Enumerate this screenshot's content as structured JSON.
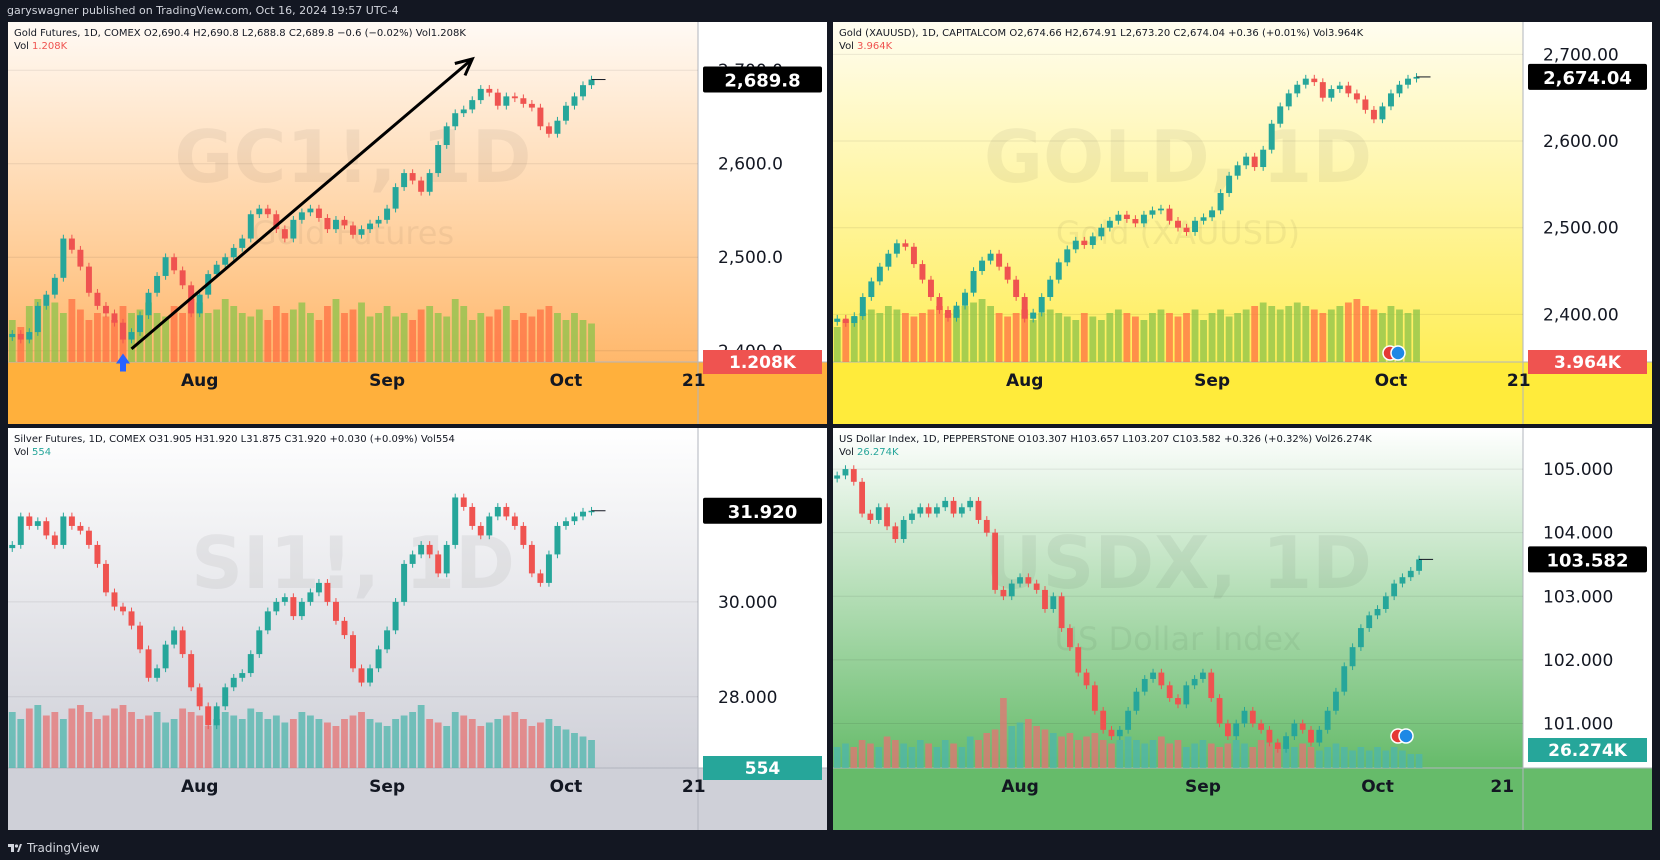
{
  "header": {
    "publisher": "garyswagner published on TradingView.com, Oct 16, 2024 19:57 UTC-4"
  },
  "footer": {
    "brand": "TradingView"
  },
  "colors": {
    "up": "#26a69a",
    "down": "#ef5350"
  },
  "chart_data": [
    {
      "type": "candlestick",
      "panel": "top-left",
      "info_line": "Gold Futures, 1D, COMEX  O2,690.4  H2,690.8  L2,688.8  C2,689.8  −0.6 (−0.02%)  Vol1.208K",
      "vol_label": "Vol",
      "vol_value": "1.208K",
      "watermark": "GC1!, 1D",
      "watermark_sub": "Gold Futures",
      "price_badge": "2,689.8",
      "vol_badge": "1.208K",
      "ylim": [
        2388,
        2728
      ],
      "y_ticks": [
        "2,700.0",
        "2,600.0",
        "2,500.0",
        "2,400.0"
      ],
      "y_tick_values": [
        2700,
        2600,
        2500,
        2400
      ],
      "x_ticks": [
        "Aug",
        "Sep",
        "Oct",
        "21"
      ],
      "x_tick_index": [
        22,
        44,
        65,
        80
      ],
      "annotations": [
        "up-trend arrow",
        "blue up-arrow marker"
      ],
      "closes": [
        2418,
        2412,
        2420,
        2448,
        2460,
        2478,
        2520,
        2508,
        2490,
        2462,
        2448,
        2440,
        2430,
        2412,
        2420,
        2438,
        2462,
        2480,
        2500,
        2486,
        2470,
        2440,
        2460,
        2482,
        2492,
        2500,
        2510,
        2520,
        2546,
        2552,
        2546,
        2530,
        2520,
        2540,
        2548,
        2552,
        2542,
        2530,
        2540,
        2534,
        2524,
        2530,
        2536,
        2540,
        2552,
        2575,
        2590,
        2582,
        2570,
        2590,
        2620,
        2640,
        2654,
        2658,
        2668,
        2680,
        2676,
        2662,
        2672,
        2670,
        2664,
        2660,
        2640,
        2632,
        2646,
        2662,
        2672,
        2684,
        2690
      ],
      "volumes": [
        0.6,
        0.5,
        0.8,
        0.9,
        0.8,
        0.85,
        0.7,
        0.9,
        0.75,
        0.6,
        0.7,
        0.65,
        0.6,
        0.8,
        0.7,
        0.75,
        0.85,
        0.7,
        0.65,
        0.8,
        0.7,
        0.9,
        0.85,
        0.7,
        0.75,
        0.9,
        0.8,
        0.7,
        0.65,
        0.75,
        0.6,
        0.8,
        0.7,
        0.75,
        0.85,
        0.7,
        0.6,
        0.8,
        0.9,
        0.7,
        0.75,
        0.85,
        0.65,
        0.7,
        0.8,
        0.65,
        0.7,
        0.6,
        0.75,
        0.8,
        0.7,
        0.65,
        0.9,
        0.8,
        0.6,
        0.7,
        0.65,
        0.75,
        0.8,
        0.6,
        0.7,
        0.65,
        0.75,
        0.8,
        0.7,
        0.6,
        0.7,
        0.6,
        0.55
      ]
    },
    {
      "type": "candlestick",
      "panel": "top-right",
      "info_line": "Gold (XAUUSD), 1D, CAPITALCOM  O2,674.66  H2,674.91  L2,673.20  C2,674.04  +0.36 (+0.01%)  Vol3.964K",
      "vol_label": "Vol",
      "vol_value": "3.964K",
      "watermark": "GOLD, 1D",
      "watermark_sub": "Gold (XAUUSD)",
      "price_badge": "2,674.04",
      "vol_badge": "3.964K",
      "ylim": [
        2345,
        2712
      ],
      "y_ticks": [
        "2,700.00",
        "2,600.00",
        "2,500.00",
        "2,400.00"
      ],
      "y_tick_values": [
        2700,
        2600,
        2500,
        2400
      ],
      "x_ticks": [
        "Aug",
        "Sep",
        "Oct",
        "21"
      ],
      "x_tick_index": [
        22,
        44,
        65,
        80
      ],
      "closes": [
        2395,
        2390,
        2398,
        2420,
        2438,
        2455,
        2470,
        2482,
        2478,
        2458,
        2440,
        2420,
        2405,
        2396,
        2410,
        2425,
        2450,
        2462,
        2470,
        2455,
        2440,
        2420,
        2395,
        2402,
        2420,
        2440,
        2460,
        2475,
        2485,
        2480,
        2490,
        2500,
        2508,
        2515,
        2510,
        2505,
        2515,
        2520,
        2522,
        2508,
        2500,
        2495,
        2508,
        2512,
        2520,
        2540,
        2560,
        2572,
        2582,
        2570,
        2590,
        2620,
        2640,
        2655,
        2665,
        2672,
        2668,
        2650,
        2660,
        2664,
        2655,
        2648,
        2636,
        2625,
        2640,
        2655,
        2665,
        2672,
        2674
      ],
      "volumes": [
        0.5,
        0.6,
        0.65,
        0.7,
        0.75,
        0.7,
        0.8,
        0.75,
        0.7,
        0.65,
        0.7,
        0.75,
        0.8,
        0.7,
        0.75,
        0.8,
        0.85,
        0.9,
        0.8,
        0.7,
        0.65,
        0.7,
        0.75,
        0.6,
        0.7,
        0.75,
        0.7,
        0.65,
        0.6,
        0.7,
        0.65,
        0.6,
        0.7,
        0.75,
        0.7,
        0.65,
        0.6,
        0.7,
        0.75,
        0.7,
        0.65,
        0.7,
        0.75,
        0.6,
        0.7,
        0.75,
        0.65,
        0.7,
        0.75,
        0.8,
        0.85,
        0.8,
        0.75,
        0.8,
        0.85,
        0.8,
        0.75,
        0.7,
        0.75,
        0.8,
        0.85,
        0.9,
        0.8,
        0.75,
        0.7,
        0.8,
        0.75,
        0.7,
        0.75
      ]
    },
    {
      "type": "candlestick",
      "panel": "bottom-left",
      "info_line": "Silver Futures, 1D, COMEX  O31.905  H31.920  L31.875  C31.920  +0.030 (+0.09%)  Vol554",
      "vol_label": "Vol",
      "vol_value": "554",
      "watermark": "SI1!, 1D",
      "watermark_sub": "",
      "price_badge": "31.920",
      "vol_badge": "554",
      "ylim": [
        26.5,
        33.2
      ],
      "y_ticks": [
        "30.000",
        "28.000"
      ],
      "y_tick_values": [
        30,
        28
      ],
      "x_ticks": [
        "Aug",
        "Sep",
        "Oct",
        "21"
      ],
      "x_tick_index": [
        22,
        44,
        65,
        80
      ],
      "closes": [
        31.2,
        31.8,
        31.6,
        31.7,
        31.4,
        31.2,
        31.8,
        31.6,
        31.5,
        31.2,
        30.8,
        30.2,
        29.9,
        29.8,
        29.5,
        29.0,
        28.4,
        28.6,
        29.1,
        29.4,
        28.9,
        28.2,
        27.8,
        27.4,
        27.8,
        28.2,
        28.4,
        28.5,
        28.9,
        29.4,
        29.8,
        30.0,
        30.1,
        29.7,
        30.0,
        30.2,
        30.4,
        30.0,
        29.6,
        29.3,
        28.6,
        28.3,
        28.6,
        29.0,
        29.4,
        30.0,
        30.8,
        31.0,
        31.2,
        31.0,
        30.6,
        31.2,
        32.2,
        32.0,
        31.6,
        31.4,
        31.8,
        32.0,
        31.8,
        31.6,
        31.2,
        30.6,
        30.4,
        31.0,
        31.6,
        31.7,
        31.8,
        31.9,
        31.92
      ],
      "volumes": [
        0.8,
        0.7,
        0.85,
        0.9,
        0.75,
        0.8,
        0.7,
        0.85,
        0.9,
        0.8,
        0.7,
        0.75,
        0.85,
        0.9,
        0.8,
        0.7,
        0.75,
        0.8,
        0.65,
        0.7,
        0.85,
        0.8,
        0.75,
        0.6,
        0.7,
        0.8,
        0.75,
        0.7,
        0.85,
        0.8,
        0.7,
        0.75,
        0.65,
        0.7,
        0.8,
        0.75,
        0.7,
        0.65,
        0.6,
        0.7,
        0.75,
        0.8,
        0.7,
        0.65,
        0.6,
        0.7,
        0.75,
        0.8,
        0.9,
        0.7,
        0.65,
        0.6,
        0.8,
        0.75,
        0.7,
        0.6,
        0.65,
        0.7,
        0.75,
        0.8,
        0.7,
        0.6,
        0.65,
        0.7,
        0.6,
        0.55,
        0.5,
        0.45,
        0.4
      ],
      "volume_marker": 95
    },
    {
      "type": "candlestick",
      "panel": "bottom-right",
      "info_line": "US Dollar Index, 1D, PEPPERSTONE  O103.307  H103.657  L103.207  C103.582  +0.326 (+0.32%)  Vol26.274K",
      "vol_label": "Vol",
      "vol_value": "26.274K",
      "watermark": "USDX, 1D",
      "watermark_sub": "US Dollar Index",
      "price_badge": "103.582",
      "vol_badge": "26.274K",
      "ylim": [
        100.3,
        105.3
      ],
      "y_ticks": [
        "105.000",
        "104.000",
        "103.000",
        "102.000",
        "101.000"
      ],
      "y_tick_values": [
        105,
        104,
        103,
        102,
        101
      ],
      "x_ticks": [
        "Aug",
        "Sep",
        "Oct",
        "21"
      ],
      "x_tick_index": [
        22,
        44,
        65,
        80
      ],
      "closes": [
        104.9,
        105.0,
        104.8,
        104.3,
        104.2,
        104.4,
        104.1,
        103.9,
        104.2,
        104.3,
        104.4,
        104.3,
        104.4,
        104.5,
        104.3,
        104.4,
        104.5,
        104.2,
        104.0,
        103.1,
        103.0,
        103.2,
        103.3,
        103.2,
        103.1,
        102.8,
        103.0,
        102.5,
        102.2,
        101.8,
        101.6,
        101.2,
        100.9,
        100.8,
        100.9,
        101.2,
        101.5,
        101.7,
        101.8,
        101.6,
        101.4,
        101.3,
        101.6,
        101.7,
        101.8,
        101.4,
        101.0,
        100.8,
        101.0,
        101.2,
        101.0,
        100.9,
        100.7,
        100.6,
        100.8,
        101.0,
        100.9,
        100.7,
        100.9,
        101.2,
        101.5,
        101.9,
        102.2,
        102.5,
        102.7,
        102.8,
        103.0,
        103.2,
        103.3,
        103.4,
        103.58
      ],
      "volumes": [
        0.3,
        0.35,
        0.3,
        0.4,
        0.35,
        0.3,
        0.45,
        0.4,
        0.35,
        0.3,
        0.4,
        0.35,
        0.3,
        0.4,
        0.35,
        0.3,
        0.45,
        0.4,
        0.5,
        0.55,
        1.0,
        0.6,
        0.65,
        0.7,
        0.6,
        0.55,
        0.5,
        0.45,
        0.5,
        0.4,
        0.45,
        0.5,
        0.4,
        0.35,
        0.4,
        0.45,
        0.4,
        0.35,
        0.4,
        0.45,
        0.35,
        0.4,
        0.3,
        0.35,
        0.4,
        0.35,
        0.3,
        0.35,
        0.4,
        0.35,
        0.3,
        0.4,
        0.35,
        0.3,
        0.35,
        0.3,
        0.35,
        0.3,
        0.25,
        0.3,
        0.35,
        0.3,
        0.25,
        0.3,
        0.25,
        0.3,
        0.25,
        0.3,
        0.25,
        0.2,
        0.2
      ]
    }
  ]
}
